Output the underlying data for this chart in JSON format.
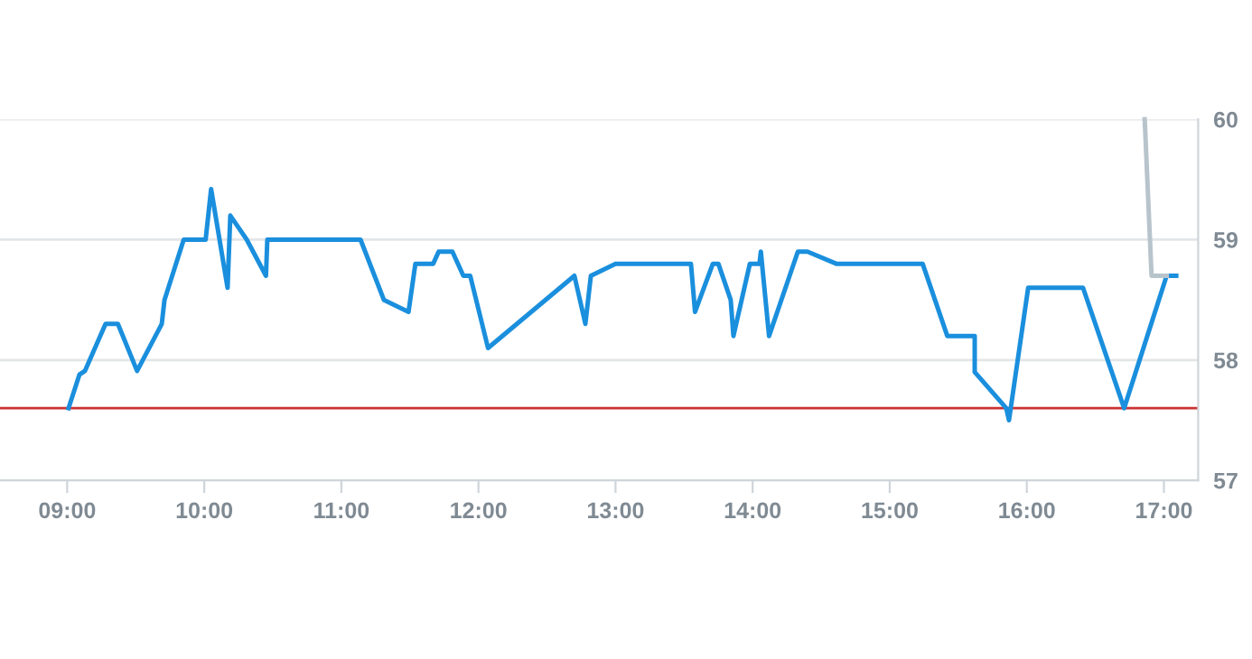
{
  "chart_data": {
    "type": "line",
    "series": [
      {
        "color": "#1a8fdd",
        "x": [
          9.01,
          9.09,
          9.13,
          9.28,
          9.37,
          9.51,
          9.69,
          9.71,
          9.85,
          10.01,
          10.05,
          10.17,
          10.19,
          10.31,
          10.45,
          10.46,
          11.14,
          11.31,
          11.49,
          11.54,
          11.58,
          11.67,
          11.71,
          11.81,
          11.89,
          11.94,
          12.07,
          12.7,
          12.78,
          12.82,
          13.0,
          13.55,
          13.58,
          13.71,
          13.75,
          13.84,
          13.86,
          13.98,
          14.05,
          14.06,
          14.12,
          14.33,
          14.4,
          14.61,
          15.24,
          15.42,
          15.62,
          15.62,
          15.85,
          15.87,
          16.01,
          16.41,
          16.71,
          17.02,
          17.09
        ],
        "values": [
          57.6,
          57.88,
          57.91,
          58.3,
          58.3,
          57.91,
          58.3,
          58.5,
          59.0,
          59.0,
          59.42,
          58.6,
          59.2,
          59.0,
          58.7,
          59.0,
          59.0,
          58.5,
          58.4,
          58.8,
          58.8,
          58.8,
          58.9,
          58.9,
          58.7,
          58.7,
          58.1,
          58.7,
          58.3,
          58.7,
          58.8,
          58.8,
          58.4,
          58.8,
          58.8,
          58.5,
          58.2,
          58.8,
          58.8,
          58.9,
          58.2,
          58.9,
          58.9,
          58.8,
          58.8,
          58.2,
          58.2,
          57.9,
          57.6,
          57.5,
          58.6,
          58.6,
          57.6,
          58.7,
          58.7
        ]
      },
      {
        "color": "#b8c4cc",
        "x": [
          16.86,
          16.91,
          17.02
        ],
        "values": [
          60.0,
          58.7,
          58.7
        ]
      }
    ],
    "xlim": [
      8.51,
      17.25
    ],
    "xticks": [
      {
        "value": 9,
        "label": "09:00"
      },
      {
        "value": 10,
        "label": "10:00"
      },
      {
        "value": 11,
        "label": "11:00"
      },
      {
        "value": 12,
        "label": "12:00"
      },
      {
        "value": 13,
        "label": "13:00"
      },
      {
        "value": 14,
        "label": "14:00"
      },
      {
        "value": 15,
        "label": "15:00"
      },
      {
        "value": 16,
        "label": "16:00"
      },
      {
        "value": 17,
        "label": "17:00"
      }
    ],
    "ylim": [
      57,
      60
    ],
    "yticks": [
      57,
      58,
      59,
      60
    ],
    "grid": "y",
    "legend": false,
    "marker": "none",
    "line_style": "solid",
    "ref_lines": [
      {
        "axis": "y",
        "value": 57.6,
        "color": "#cc3333"
      }
    ]
  }
}
